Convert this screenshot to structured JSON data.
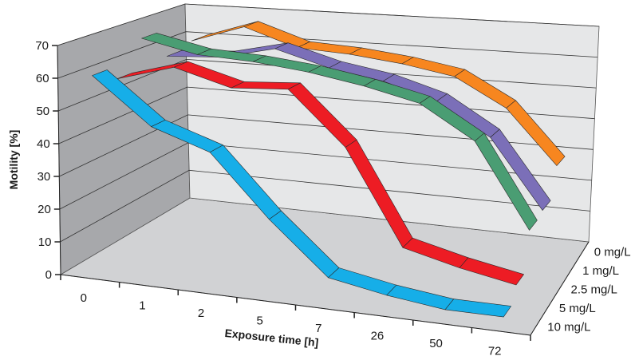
{
  "chart_data": {
    "type": "line",
    "style": "3d-ribbon",
    "title": "",
    "xlabel": "Exposure time [h]",
    "ylabel": "Motility [%]",
    "zlabel": "",
    "categories": [
      "0",
      "1",
      "2",
      "5",
      "7",
      "26",
      "50",
      "72"
    ],
    "ylim": [
      0,
      70
    ],
    "yticks": [
      0,
      10,
      20,
      30,
      40,
      50,
      60,
      70
    ],
    "grid": true,
    "series": [
      {
        "name": "0 mg/L",
        "color": "#f7861f",
        "values": [
          60,
          66,
          60,
          59,
          57,
          54,
          45,
          28
        ]
      },
      {
        "name": "1 mg/L",
        "color": "#7b6fb8",
        "values": [
          58,
          59,
          63,
          58,
          55,
          50,
          40,
          19
        ]
      },
      {
        "name": "2.5 mg/L",
        "color": "#4a9d73",
        "values": [
          67,
          63,
          62,
          60,
          57,
          53,
          43,
          18
        ]
      },
      {
        "name": "5 mg/L",
        "color": "#ed1c24",
        "values": [
          57,
          62,
          57,
          58,
          42,
          14,
          10,
          7
        ]
      },
      {
        "name": "10 mg/L",
        "color": "#16aee8",
        "values": [
          61,
          47,
          41,
          23,
          8,
          5,
          3,
          3
        ]
      }
    ],
    "colors": {
      "left_wall": "#a7a8ab",
      "back_wall": "#e6e7e8",
      "floor": "#d1d2d4",
      "gridline": "#333333"
    }
  }
}
